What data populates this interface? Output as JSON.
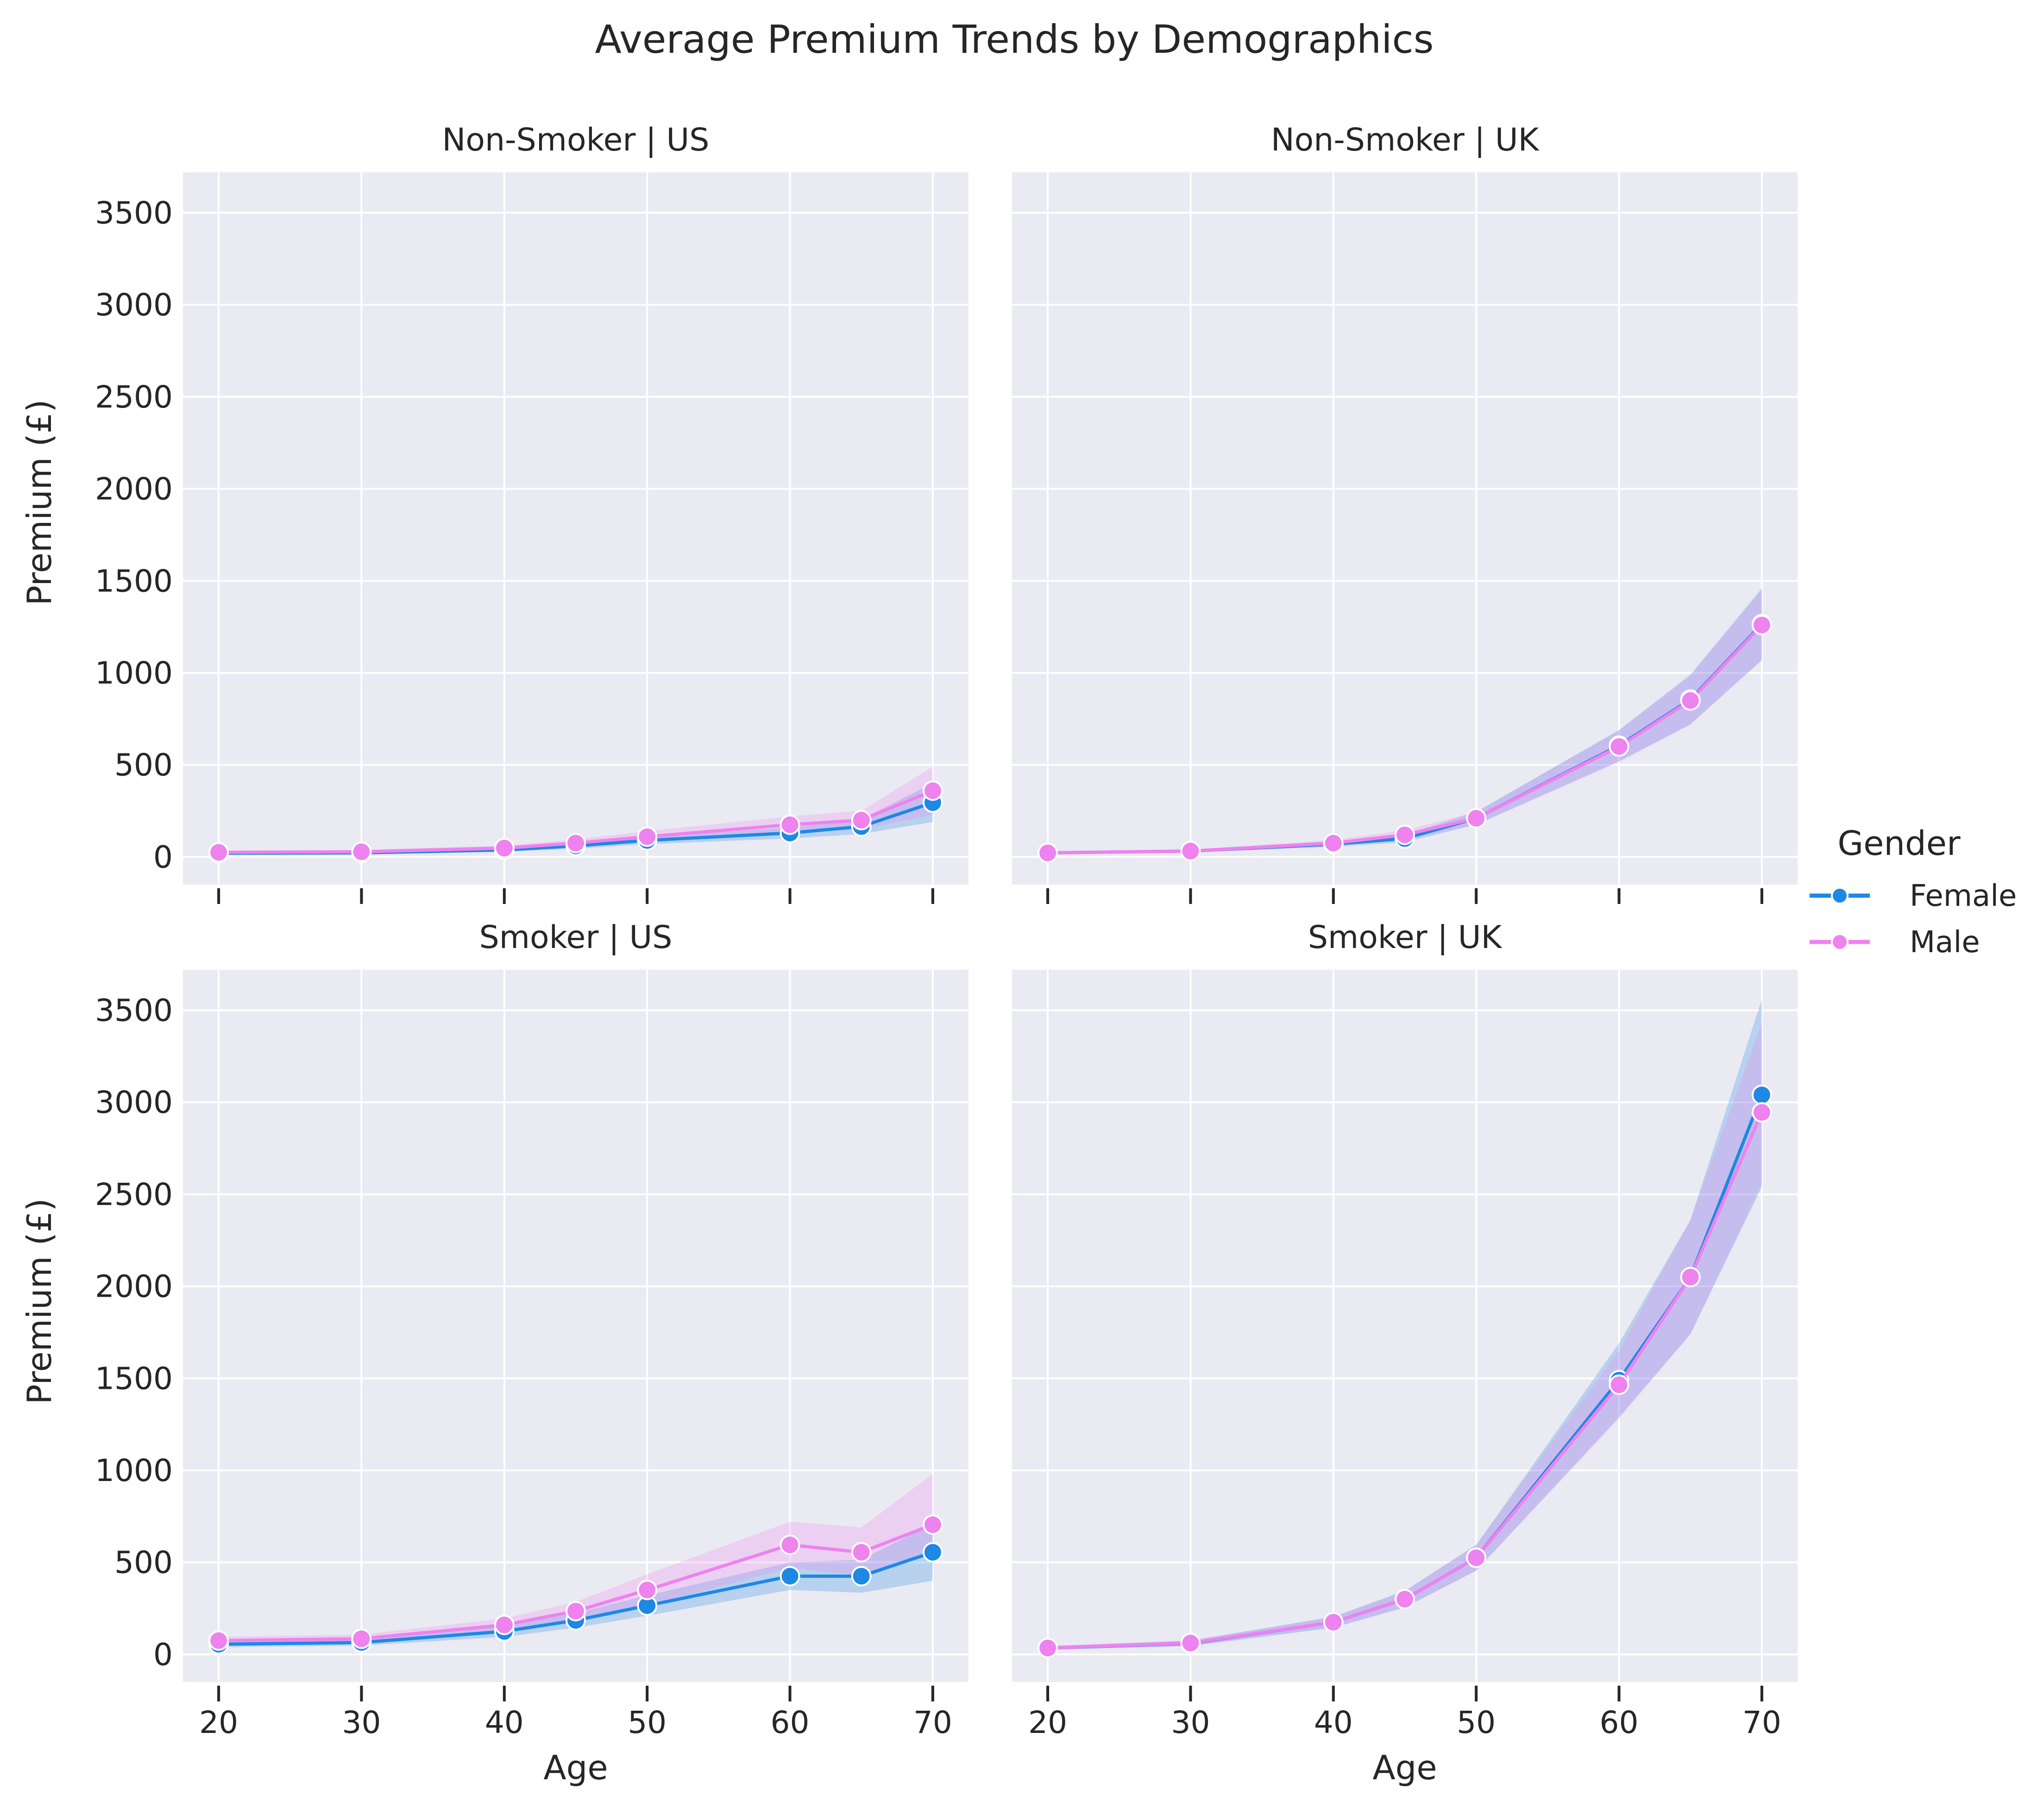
{
  "chart_data": {
    "type": "line",
    "title": "Average Premium Trends by Demographics",
    "xlabel": "Age",
    "ylabel": "Premium (£)",
    "x_ticks": [
      20,
      30,
      40,
      50,
      60,
      70
    ],
    "y_ticks": [
      0,
      500,
      1000,
      1500,
      2000,
      2500,
      3000,
      3500
    ],
    "xlim": [
      17.5,
      72.5
    ],
    "ylim": [
      -150,
      3720
    ],
    "grid": true,
    "legend": {
      "title": "Gender",
      "placement": "right",
      "entries": [
        {
          "name": "Female",
          "color": "#1E88E5"
        },
        {
          "name": "Male",
          "color": "#EE82EE"
        }
      ]
    },
    "colors": {
      "background": "#EAEAF2",
      "grid": "#FFFFFF",
      "female": "#1E88E5",
      "male": "#EE82EE"
    },
    "x": [
      20,
      30,
      40,
      45,
      50,
      60,
      65,
      70
    ],
    "panels": [
      {
        "title": "Non-Smoker | US",
        "series": [
          {
            "name": "Female",
            "values": [
              20,
              22,
              38,
              60,
              90,
              130,
              165,
              295
            ],
            "ci_low": [
              12,
              14,
              28,
              45,
              70,
              100,
              125,
              190
            ],
            "ci_high": [
              28,
              30,
              48,
              75,
              110,
              160,
              205,
              400
            ]
          },
          {
            "name": "Male",
            "values": [
              25,
              28,
              48,
              75,
              110,
              175,
              200,
              360
            ],
            "ci_low": [
              15,
              18,
              35,
              55,
              80,
              130,
              150,
              230
            ],
            "ci_high": [
              35,
              38,
              62,
              95,
              140,
              220,
              250,
              490
            ]
          }
        ]
      },
      {
        "title": "Non-Smoker | UK",
        "series": [
          {
            "name": "Female",
            "values": [
              22,
              32,
              70,
              100,
              210,
              605,
              855,
              1265
            ],
            "ci_low": [
              15,
              24,
              55,
              80,
              175,
              520,
              720,
              1070
            ],
            "ci_high": [
              30,
              40,
              85,
              120,
              245,
              690,
              990,
              1460
            ]
          },
          {
            "name": "Male",
            "values": [
              22,
              32,
              75,
              120,
              210,
              600,
              850,
              1260
            ],
            "ci_low": [
              15,
              24,
              58,
              95,
              175,
              515,
              720,
              1070
            ],
            "ci_high": [
              30,
              40,
              92,
              145,
              245,
              685,
              985,
              1450
            ]
          }
        ]
      },
      {
        "title": "Smoker | US",
        "series": [
          {
            "name": "Female",
            "values": [
              55,
              65,
              125,
              185,
              265,
              425,
              425,
              555
            ],
            "ci_low": [
              40,
              48,
              95,
              145,
              210,
              350,
              335,
              400
            ],
            "ci_high": [
              70,
              82,
              155,
              225,
              320,
              500,
              515,
              710
            ]
          },
          {
            "name": "Male",
            "values": [
              75,
              85,
              160,
              235,
              350,
              595,
              555,
              705
            ],
            "ci_low": [
              55,
              62,
              125,
              185,
              265,
              470,
              430,
              540
            ],
            "ci_high": [
              95,
              108,
              195,
              285,
              435,
              720,
              690,
              980
            ]
          }
        ]
      },
      {
        "title": "Smoker | UK",
        "series": [
          {
            "name": "Female",
            "values": [
              35,
              60,
              175,
              300,
              525,
              1490,
              2050,
              3040
            ],
            "ci_low": [
              25,
              45,
              145,
              255,
              455,
              1290,
              1740,
              2540
            ],
            "ci_high": [
              45,
              75,
              205,
              345,
              595,
              1690,
              2360,
              3560
            ]
          },
          {
            "name": "Male",
            "values": [
              35,
              62,
              175,
              300,
              525,
              1465,
              2050,
              2945
            ],
            "ci_low": [
              25,
              47,
              148,
              255,
              455,
              1280,
              1740,
              2560
            ],
            "ci_high": [
              45,
              77,
              202,
              345,
              595,
              1650,
              2360,
              3430
            ]
          }
        ]
      }
    ]
  }
}
